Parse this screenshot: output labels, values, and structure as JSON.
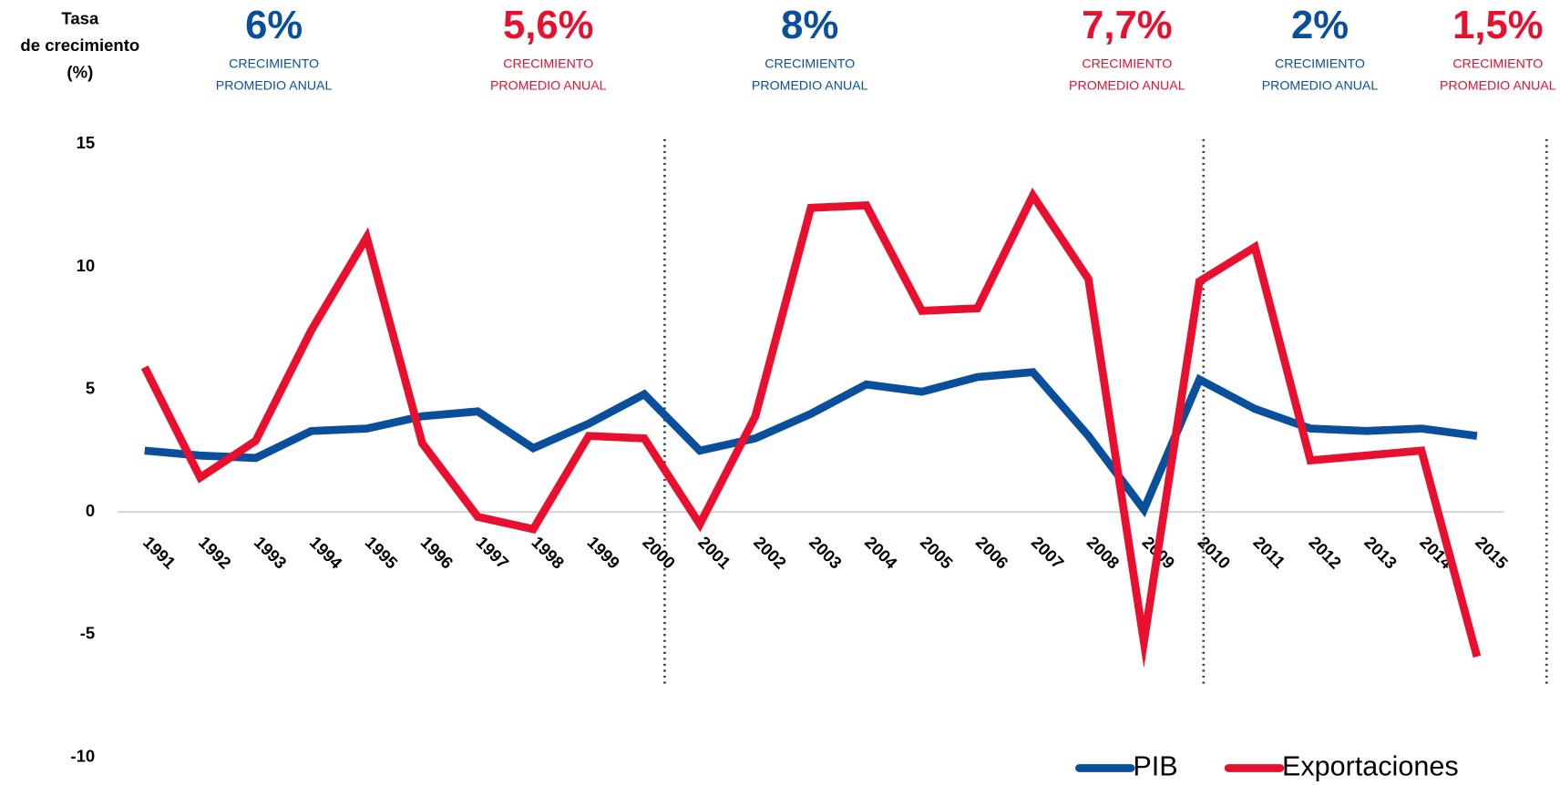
{
  "chart_data": {
    "type": "line",
    "y_label": [
      "Tasa",
      "de crecimiento",
      "(%)"
    ],
    "categories": [
      "1991",
      "1992",
      "1993",
      "1994",
      "1995",
      "1996",
      "1997",
      "1998",
      "1999",
      "2000",
      "2001",
      "2002",
      "2003",
      "2004",
      "2005",
      "2006",
      "2007",
      "2008",
      "2009",
      "2010",
      "2011",
      "2012",
      "2013",
      "2014",
      "2015"
    ],
    "series": [
      {
        "name": "PIB",
        "color": "#0a4f9c",
        "values": [
          2.5,
          2.3,
          2.2,
          3.3,
          3.4,
          3.9,
          4.1,
          2.6,
          3.6,
          4.8,
          2.5,
          3.0,
          4.0,
          5.2,
          4.9,
          5.5,
          5.7,
          3.1,
          0.1,
          5.4,
          4.2,
          3.4,
          3.3,
          3.4,
          3.1
        ]
      },
      {
        "name": "Exportaciones",
        "color": "#e8102e",
        "values": [
          5.9,
          1.4,
          2.9,
          7.4,
          11.2,
          2.8,
          -0.2,
          -0.7,
          3.1,
          3.0,
          -0.5,
          3.9,
          12.4,
          12.5,
          8.2,
          8.3,
          12.9,
          9.5,
          -5.3,
          9.4,
          10.8,
          2.1,
          2.3,
          2.5,
          -5.9
        ]
      }
    ],
    "ylim": [
      -10,
      15
    ],
    "yticks": [
      -10,
      -5,
      0,
      5,
      10,
      15
    ],
    "annotations": [
      {
        "value": "6%",
        "line1": "CRECIMIENTO",
        "line2": "PROMEDIO ANUAL",
        "color": "#0a4f9c"
      },
      {
        "value": "5,6%",
        "line1": "CRECIMIENTO",
        "line2": "PROMEDIO ANUAL",
        "color": "#e8102e"
      },
      {
        "value": "8%",
        "line1": "CRECIMIENTO",
        "line2": "PROMEDIO ANUAL",
        "color": "#0a4f9c"
      },
      {
        "value": "7,7%",
        "line1": "CRECIMIENTO",
        "line2": "PROMEDIO ANUAL",
        "color": "#e8102e"
      },
      {
        "value": "2%",
        "line1": "CRECIMIENTO",
        "line2": "PROMEDIO ANUAL",
        "color": "#0a4f9c"
      },
      {
        "value": "1,5%",
        "line1": "CRECIMIENTO",
        "line2": "PROMEDIO ANUAL",
        "color": "#e8102e"
      }
    ]
  }
}
